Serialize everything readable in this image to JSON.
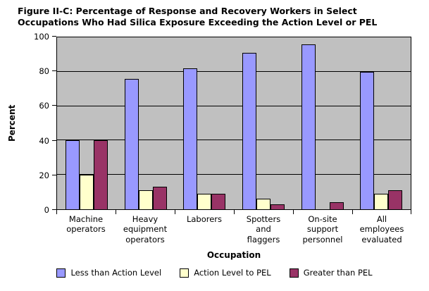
{
  "chart_data": {
    "type": "bar",
    "title": "Figure II-C: Percentage of Response and Recovery Workers in Select Occupations Who Had Silica Exposure Exceeding the Action Level or PEL",
    "title_lines": [
      "Figure II-C: Percentage of Response and Recovery Workers in Select",
      "Occupations Who Had Silica Exposure Exceeding the Action Level or PEL"
    ],
    "xlabel": "Occupation",
    "ylabel": "Percent",
    "ylim": [
      0,
      100
    ],
    "yticks": [
      0,
      20,
      40,
      60,
      80,
      100
    ],
    "grid": true,
    "legend_position": "bottom",
    "plot_background": "#C0C0C0",
    "gridline_color": "#000000",
    "categories": [
      "Machine operators",
      "Heavy equipment operators",
      "Laborers",
      "Spotters and flaggers",
      "On-site support personnel",
      "All employees evaluated"
    ],
    "category_label_lines": [
      [
        "Machine",
        "operators"
      ],
      [
        "Heavy",
        "equipment",
        "operators"
      ],
      [
        "Laborers"
      ],
      [
        "Spotters",
        "and",
        "flaggers"
      ],
      [
        "On-site",
        "support",
        "personnel"
      ],
      [
        "All",
        "employees",
        "evaluated"
      ]
    ],
    "series": [
      {
        "name": "Less than Action Level",
        "color": "#9999FF",
        "values": [
          40,
          76,
          82,
          91,
          96,
          80
        ]
      },
      {
        "name": "Action Level to PEL",
        "color": "#FFFFCC",
        "values": [
          20,
          11,
          9,
          6,
          0,
          9
        ]
      },
      {
        "name": "Greater than PEL",
        "color": "#993366",
        "values": [
          40,
          13,
          9,
          3,
          4,
          11
        ]
      }
    ]
  }
}
